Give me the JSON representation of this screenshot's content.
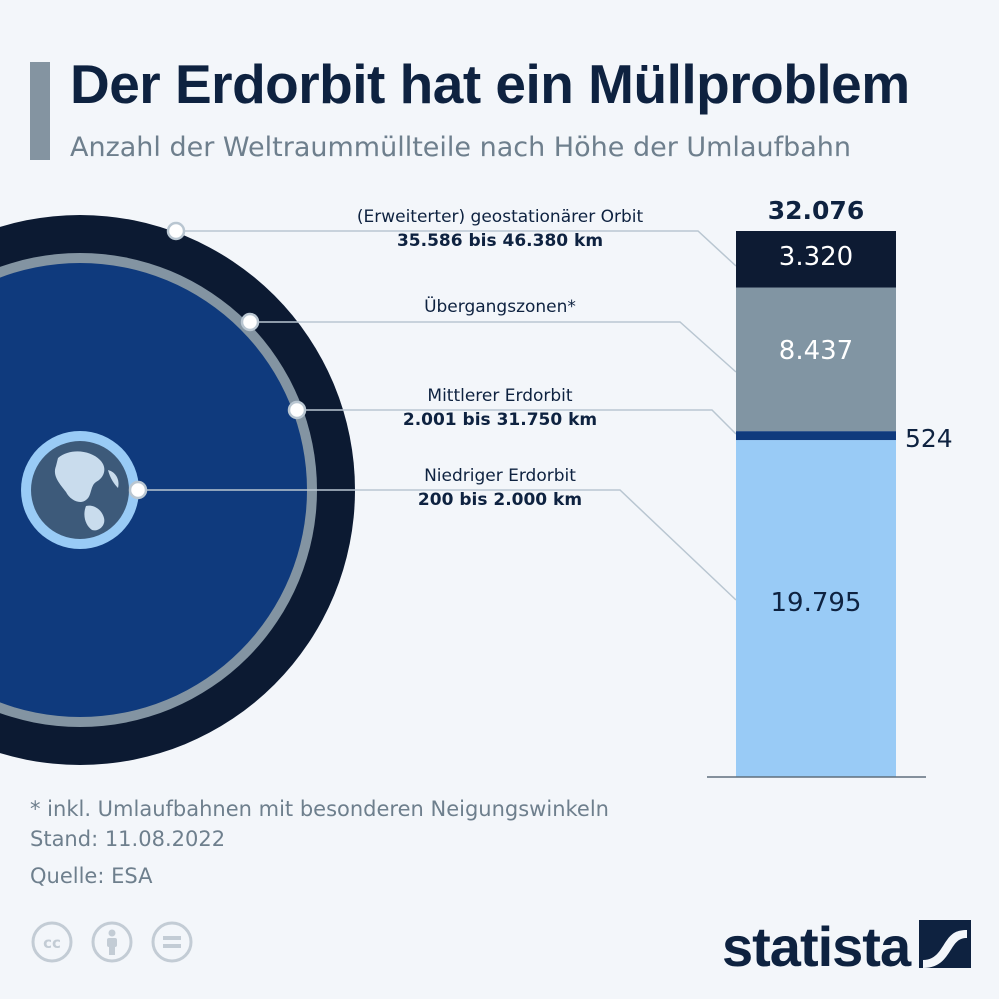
{
  "header": {
    "title": "Der Erdorbit hat ein Müllproblem",
    "subtitle": "Anzahl der Weltraummüllteile nach Höhe der Umlaufbahn"
  },
  "orbits": [
    {
      "name": "(Erweiterter) geostationärer Orbit",
      "range": "35.586 bis 46.380 km"
    },
    {
      "name": "Übergangszonen*",
      "range": ""
    },
    {
      "name": "Mittlerer Erdorbit",
      "range": "2.001 bis 31.750 km"
    },
    {
      "name": "Niedriger Erdorbit",
      "range": "200 bis 2.000 km"
    }
  ],
  "chart_data": {
    "type": "bar",
    "stacked": true,
    "total": "32.076",
    "categories": [
      "Niedriger Erdorbit",
      "Mittlerer Erdorbit",
      "Übergangszonen",
      "(Erweiterter) geostationärer Orbit"
    ],
    "values": [
      19795,
      524,
      8437,
      3320
    ],
    "value_labels": [
      "19.795",
      "524",
      "8.437",
      "3.320"
    ],
    "colors": [
      "#99cbf6",
      "#0f3a7d",
      "#8195a3",
      "#0d1b33"
    ]
  },
  "footnotes": {
    "note": "* inkl. Umlaufbahnen mit besonderen Neigungswinkeln",
    "date": "Stand: 11.08.2022",
    "source": "Quelle: ESA"
  },
  "brand": {
    "logo_text": "statista"
  },
  "icons": [
    "cc-icon",
    "attribution-icon",
    "no-derivatives-icon",
    "statista-logo-icon"
  ]
}
